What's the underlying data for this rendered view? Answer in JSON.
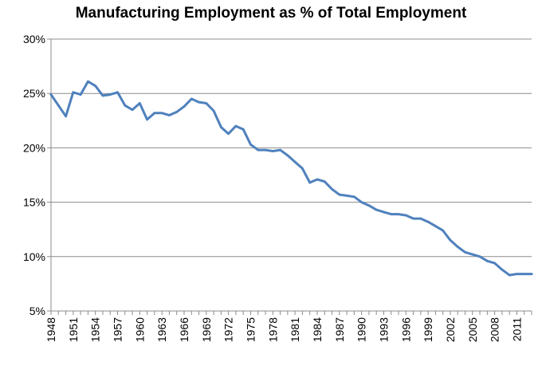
{
  "chart_data": {
    "type": "line",
    "title": "Manufacturing Employment as % of Total Employment",
    "xlabel": "",
    "ylabel": "",
    "ylim": [
      5,
      30
    ],
    "xlim": [
      1948,
      2013
    ],
    "grid": true,
    "legend": "none",
    "line_color": "#4f81bd",
    "y_ticks": [
      "5%",
      "10%",
      "15%",
      "20%",
      "25%",
      "30%"
    ],
    "y_tick_values": [
      5,
      10,
      15,
      20,
      25,
      30
    ],
    "x_ticks": [
      "1948",
      "1951",
      "1954",
      "1957",
      "1960",
      "1963",
      "1966",
      "1969",
      "1972",
      "1975",
      "1978",
      "1981",
      "1984",
      "1987",
      "1990",
      "1993",
      "1996",
      "1999",
      "2002",
      "2005",
      "2008",
      "2011"
    ],
    "x": [
      1948,
      1949,
      1950,
      1951,
      1952,
      1953,
      1954,
      1955,
      1956,
      1957,
      1958,
      1959,
      1960,
      1961,
      1962,
      1963,
      1964,
      1965,
      1966,
      1967,
      1968,
      1969,
      1970,
      1971,
      1972,
      1973,
      1974,
      1975,
      1976,
      1977,
      1978,
      1979,
      1980,
      1981,
      1982,
      1983,
      1984,
      1985,
      1986,
      1987,
      1988,
      1989,
      1990,
      1991,
      1992,
      1993,
      1994,
      1995,
      1996,
      1997,
      1998,
      1999,
      2000,
      2001,
      2002,
      2003,
      2004,
      2005,
      2006,
      2007,
      2008,
      2009,
      2010,
      2011,
      2012,
      2013
    ],
    "series": [
      {
        "values": [
          24.9,
          23.9,
          22.9,
          25.1,
          24.9,
          26.1,
          25.7,
          24.8,
          24.9,
          25.1,
          23.9,
          23.5,
          24.1,
          22.6,
          23.2,
          23.2,
          23.0,
          23.3,
          23.8,
          24.5,
          24.2,
          24.1,
          23.4,
          21.9,
          21.3,
          22.0,
          21.7,
          20.3,
          19.8,
          19.8,
          19.7,
          19.8,
          19.3,
          18.7,
          18.1,
          16.8,
          17.1,
          16.9,
          16.2,
          15.7,
          15.6,
          15.5,
          15.0,
          14.7,
          14.3,
          14.1,
          13.9,
          13.9,
          13.8,
          13.5,
          13.5,
          13.2,
          12.8,
          12.4,
          11.5,
          10.9,
          10.4,
          10.2,
          10.0,
          9.6,
          9.4,
          8.8,
          8.3,
          8.4,
          8.4,
          8.4
        ]
      }
    ]
  }
}
